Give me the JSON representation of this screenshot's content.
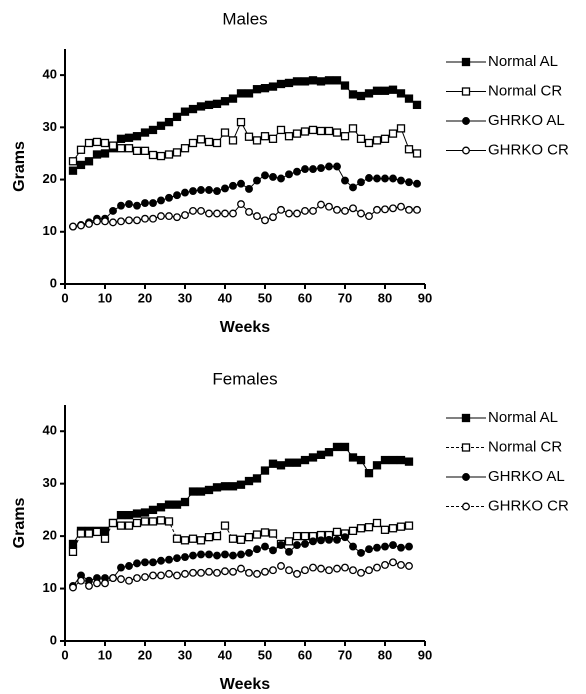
{
  "chart_data": [
    {
      "type": "line",
      "title": "Males",
      "xlabel": "Weeks",
      "ylabel": "Grams",
      "xlim": [
        0,
        90
      ],
      "xticks": [
        0,
        10,
        20,
        30,
        40,
        50,
        60,
        70,
        80,
        90
      ],
      "ylim": [
        0,
        45
      ],
      "yticks": [
        0,
        10,
        20,
        30,
        40
      ],
      "x": [
        2,
        4,
        6,
        8,
        10,
        12,
        14,
        16,
        18,
        20,
        22,
        24,
        26,
        28,
        30,
        32,
        34,
        36,
        38,
        40,
        42,
        44,
        46,
        48,
        50,
        52,
        54,
        56,
        58,
        60,
        62,
        64,
        66,
        68,
        70,
        72,
        74,
        76,
        78,
        80,
        82,
        84,
        86,
        88
      ],
      "series": [
        {
          "name": "Normal AL",
          "color": "#000000",
          "marker": "square",
          "fill": "#000000",
          "line": "solid",
          "values": [
            21.7,
            22.8,
            23.5,
            24.8,
            25,
            26,
            27.8,
            28,
            28.3,
            29,
            29.5,
            30.3,
            31,
            32,
            33,
            33.5,
            34,
            34.3,
            34.5,
            35,
            35.5,
            36.5,
            36.5,
            37.3,
            37.5,
            37.8,
            38.3,
            38.5,
            38.8,
            38.8,
            39,
            38.8,
            39,
            39,
            38,
            36.3,
            36,
            36.5,
            37,
            37,
            37.2,
            36.5,
            35.5,
            34.3
          ]
        },
        {
          "name": "Normal CR",
          "color": "#000000",
          "marker": "square",
          "fill": "#ffffff",
          "line": "solid",
          "values": [
            23.5,
            25.7,
            27,
            27.2,
            27,
            26.5,
            26,
            26,
            25.5,
            25.5,
            24.7,
            24.5,
            24.8,
            25.2,
            26,
            27,
            27.7,
            27.2,
            27,
            29,
            27.5,
            31,
            28.2,
            27.5,
            28.3,
            27.8,
            29.5,
            28.3,
            28.8,
            29.2,
            29.5,
            29.3,
            29.3,
            29,
            28.3,
            29.8,
            27.8,
            27,
            27.5,
            27.8,
            28.8,
            29.8,
            25.8,
            25
          ]
        },
        {
          "name": "GHRKO AL",
          "color": "#000000",
          "marker": "circle",
          "fill": "#000000",
          "line": "solid",
          "values": [
            11,
            11.3,
            11.8,
            12.5,
            12.5,
            14,
            15,
            15.3,
            15,
            15.5,
            15.5,
            16,
            16.5,
            17,
            17.5,
            17.8,
            18,
            18,
            17.8,
            18.3,
            18.8,
            19.2,
            18.2,
            19.8,
            20.8,
            20.5,
            20.2,
            21,
            21.5,
            22,
            22,
            22.2,
            22.5,
            22.5,
            19.8,
            18.5,
            19.5,
            20.3,
            20.2,
            20.2,
            20.2,
            19.8,
            19.5,
            19.2
          ]
        },
        {
          "name": "GHRKO CR",
          "color": "#000000",
          "marker": "circle",
          "fill": "#ffffff",
          "line": "solid",
          "values": [
            11,
            11.2,
            11.5,
            12,
            12,
            11.8,
            12,
            12.2,
            12.2,
            12.5,
            12.5,
            13,
            13,
            12.8,
            13.2,
            14,
            14,
            13.5,
            13.5,
            13.5,
            13.5,
            15.3,
            13.8,
            13,
            12.2,
            12.8,
            14.2,
            13.5,
            13.5,
            14,
            14,
            15.2,
            14.8,
            14.2,
            14,
            14.5,
            13.5,
            13,
            14.2,
            14.3,
            14.5,
            14.8,
            14.2,
            14.2
          ]
        }
      ]
    },
    {
      "type": "line",
      "title": "Females",
      "xlabel": "Weeks",
      "ylabel": "Grams",
      "xlim": [
        0,
        90
      ],
      "xticks": [
        0,
        10,
        20,
        30,
        40,
        50,
        60,
        70,
        80,
        90
      ],
      "ylim": [
        0,
        45
      ],
      "yticks": [
        0,
        10,
        20,
        30,
        40
      ],
      "x": [
        2,
        4,
        6,
        8,
        10,
        12,
        14,
        16,
        18,
        20,
        22,
        24,
        26,
        28,
        30,
        32,
        34,
        36,
        38,
        40,
        42,
        44,
        46,
        48,
        50,
        52,
        54,
        56,
        58,
        60,
        62,
        64,
        66,
        68,
        70,
        72,
        74,
        76,
        78,
        80,
        82,
        84,
        86
      ],
      "series": [
        {
          "name": "Normal AL",
          "color": "#000000",
          "marker": "square",
          "fill": "#000000",
          "line": "solid",
          "values": [
            18.5,
            21,
            21,
            21,
            21,
            22.5,
            24,
            24,
            24.3,
            24.5,
            25,
            25.5,
            26,
            26,
            26.5,
            28.5,
            28.5,
            28.8,
            29.3,
            29.5,
            29.5,
            29.8,
            30.5,
            31,
            32.5,
            33.8,
            33.5,
            34,
            34,
            34.5,
            35,
            35.5,
            36,
            37,
            37,
            35,
            34.5,
            32,
            33.5,
            34.5,
            34.5,
            34.5,
            34.2
          ]
        },
        {
          "name": "Normal CR",
          "color": "#000000",
          "marker": "square",
          "fill": "#ffffff",
          "line": "dashed",
          "values": [
            17,
            20.5,
            20.5,
            20.8,
            19.5,
            22.5,
            22,
            22,
            22.5,
            22.8,
            22.8,
            23,
            22.8,
            19.5,
            19.2,
            19.5,
            19.2,
            19.8,
            20,
            22,
            19.5,
            19.3,
            19.8,
            20.3,
            20.7,
            20.5,
            18.5,
            19,
            20,
            20,
            20,
            20.2,
            20.2,
            20.8,
            20.5,
            21,
            21.5,
            21.7,
            22.5,
            21.2,
            21.5,
            21.8,
            22
          ]
        },
        {
          "name": "GHRKO AL",
          "color": "#000000",
          "marker": "circle",
          "fill": "#000000",
          "line": "solid",
          "values": [
            10.5,
            12.5,
            11.5,
            12,
            12,
            12,
            14,
            14.3,
            14.8,
            15,
            15,
            15.3,
            15.5,
            15.8,
            16,
            16.3,
            16.5,
            16.5,
            16.3,
            16.5,
            16.3,
            16.5,
            16.8,
            17.5,
            18,
            17.3,
            18.3,
            17,
            18.3,
            18.5,
            19,
            19.2,
            19.3,
            19.3,
            19.8,
            18,
            16.8,
            17.5,
            17.8,
            18,
            18.3,
            17.8,
            18
          ]
        },
        {
          "name": "GHRKO CR",
          "color": "#000000",
          "marker": "circle",
          "fill": "#ffffff",
          "line": "dashed",
          "values": [
            10.2,
            11.5,
            10.5,
            11,
            11,
            12,
            11.8,
            11.5,
            12,
            12.2,
            12.5,
            12.5,
            12.8,
            12.5,
            12.8,
            13,
            13,
            13.2,
            13,
            13.3,
            13.2,
            13.8,
            13,
            12.8,
            13.2,
            13.5,
            14.3,
            13.5,
            12.8,
            13.5,
            14,
            13.8,
            13.5,
            13.8,
            14,
            13.5,
            13,
            13.5,
            14,
            14.5,
            15,
            14.5,
            14.3
          ]
        }
      ]
    }
  ]
}
